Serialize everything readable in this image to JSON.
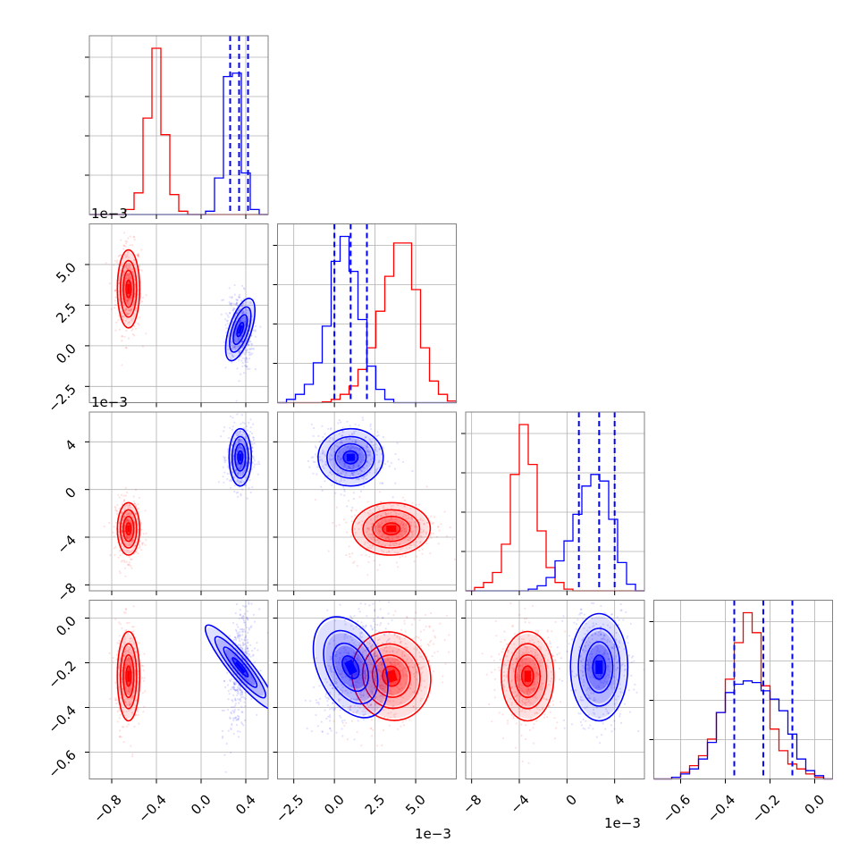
{
  "chart_data": {
    "type": "corner",
    "colors": {
      "series_a": "#ff0000",
      "series_b": "#0000ff"
    },
    "grid": true,
    "parameters": [
      {
        "index": 0,
        "range": [
          -1.0,
          0.6
        ],
        "ticks": [
          -0.8,
          -0.4,
          0.0,
          0.4
        ],
        "tick_labels": [
          "−0.8",
          "−0.4",
          "0.0",
          "0.4"
        ],
        "offset": ""
      },
      {
        "index": 1,
        "range": [
          -3.5,
          7.5
        ],
        "ticks": [
          -2.5,
          0.0,
          2.5,
          5.0
        ],
        "tick_labels": [
          "−2.5",
          "0.0",
          "2.5",
          "5.0"
        ],
        "offset": "1e−3"
      },
      {
        "index": 2,
        "range": [
          -8.5,
          6.5
        ],
        "ticks": [
          -8,
          -4,
          0,
          4
        ],
        "tick_labels": [
          "−8",
          "−4",
          "0",
          "4"
        ],
        "offset": "1e−3"
      },
      {
        "index": 3,
        "range": [
          -0.72,
          0.08
        ],
        "ticks": [
          -0.6,
          -0.4,
          -0.2,
          0.0
        ],
        "tick_labels": [
          "−0.6",
          "−0.4",
          "−0.2",
          "0.0"
        ],
        "offset": ""
      }
    ],
    "series": [
      {
        "color": "red",
        "means": [
          -0.65,
          3.5,
          -3.3,
          -0.26
        ],
        "sds": [
          0.05,
          1.2,
          1.1,
          0.1
        ]
      },
      {
        "color": "blue",
        "means": [
          0.35,
          1.0,
          2.7,
          -0.22
        ],
        "sds": [
          0.05,
          1.0,
          1.2,
          0.12
        ]
      }
    ],
    "quantiles_blue": [
      [
        0.26,
        0.34,
        0.42
      ],
      [
        0.0,
        1.0,
        2.0
      ],
      [
        1.0,
        2.7,
        4.0
      ],
      [
        -0.36,
        -0.23,
        -0.1
      ]
    ],
    "histograms": [
      {
        "param": 0,
        "edges": [
          -1.0,
          0.6
        ],
        "red": [
          0,
          0,
          0,
          0,
          0.03,
          0.13,
          0.58,
          1.0,
          0.48,
          0.12,
          0.02,
          0,
          0,
          0,
          0,
          0,
          0,
          0,
          0,
          0
        ],
        "blue": [
          0,
          0,
          0,
          0,
          0,
          0,
          0,
          0,
          0,
          0,
          0,
          0,
          0,
          0.02,
          0.22,
          0.83,
          0.85,
          0.25,
          0.03,
          0
        ]
      },
      {
        "param": 1,
        "edges": [
          -3.5,
          7.5
        ],
        "red": [
          0,
          0,
          0,
          0,
          0,
          0.005,
          0.02,
          0.05,
          0.1,
          0.2,
          0.33,
          0.55,
          0.76,
          0.96,
          0.96,
          0.68,
          0.33,
          0.13,
          0.05,
          0.01
        ],
        "blue": [
          0,
          0.02,
          0.05,
          0.11,
          0.24,
          0.46,
          0.85,
          1.0,
          0.79,
          0.5,
          0.22,
          0.08,
          0.02,
          0,
          0,
          0,
          0,
          0,
          0,
          0
        ]
      },
      {
        "param": 2,
        "edges": [
          -8.5,
          6.5
        ],
        "red": [
          0,
          0.02,
          0.05,
          0.11,
          0.28,
          0.7,
          1.0,
          0.76,
          0.36,
          0.14,
          0.05,
          0.01,
          0,
          0,
          0,
          0,
          0,
          0,
          0,
          0
        ],
        "blue": [
          0,
          0,
          0,
          0,
          0,
          0,
          0,
          0.01,
          0.03,
          0.08,
          0.18,
          0.3,
          0.46,
          0.63,
          0.7,
          0.66,
          0.43,
          0.17,
          0.04,
          0
        ]
      },
      {
        "param": 3,
        "edges": [
          -0.72,
          0.08
        ],
        "red": [
          0,
          0,
          0.01,
          0.04,
          0.08,
          0.14,
          0.24,
          0.4,
          0.6,
          0.82,
          1.0,
          0.88,
          0.56,
          0.3,
          0.17,
          0.09,
          0.06,
          0.03,
          0.01,
          0
        ],
        "blue": [
          0,
          0,
          0.01,
          0.03,
          0.06,
          0.12,
          0.22,
          0.4,
          0.52,
          0.57,
          0.59,
          0.58,
          0.53,
          0.48,
          0.41,
          0.27,
          0.12,
          0.05,
          0.02,
          0
        ]
      }
    ]
  }
}
